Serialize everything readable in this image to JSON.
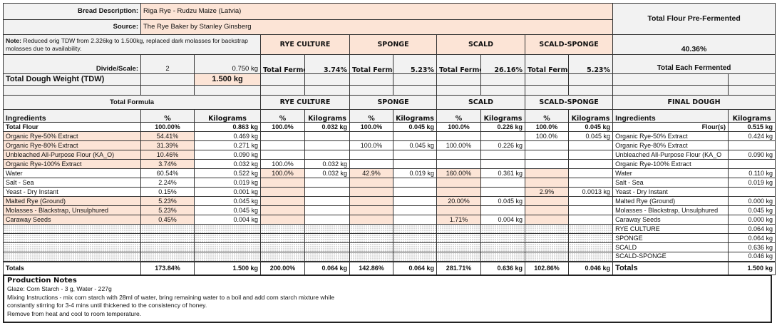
{
  "header": {
    "bread_description_label": "Bread Description:",
    "bread_description": "Riga Rye - Rudzu Maize (Latvia)",
    "source_label": "Source:",
    "source": "The Rye Baker by Stanley Ginsberg",
    "note_label": "Note:",
    "note_text": " Reduced orig TDW from 2.326kg to 1.500kg, replaced dark molasses for backstrap molasses due to availability.",
    "divide_scale_label": "Divide/Scale:",
    "divide_value": "2",
    "divide_kg": "0.750 kg",
    "tdw_label": "Total Dough Weight (TDW)",
    "tdw_value": "1.500 kg",
    "total_flour_prefermented_label": "Total Flour Pre-Fermented",
    "total_flour_prefermented_value": "40.36%",
    "total_each_fermented_label": "Total Each Fermented"
  },
  "preferments": [
    {
      "name": "RYE CULTURE",
      "total_fermented_label": "Total Fermented",
      "total_fermented_pct": "3.74%"
    },
    {
      "name": "SPONGE",
      "total_fermented_label": "Total Fermented",
      "total_fermented_pct": "5.23%"
    },
    {
      "name": "SCALD",
      "total_fermented_label": "Total Fermented",
      "total_fermented_pct": "26.16%"
    },
    {
      "name": "SCALD-SPONGE",
      "total_fermented_label": "Total Fermented",
      "total_fermented_pct": "5.23%"
    }
  ],
  "formula": {
    "title": "Total Formula",
    "final_dough_title": "FINAL DOUGH",
    "col_ingredients": "Ingredients",
    "col_pct": "%",
    "col_kg": "Kilograms",
    "rows": [
      [
        "Total Flour",
        "100.00%",
        "0.863 kg",
        "100.0%",
        "0.032 kg",
        "100.0%",
        "0.045 kg",
        "100.0%",
        "0.226 kg",
        "100.0%",
        "0.045 kg",
        "Flour(s)",
        "0.515 kg"
      ],
      [
        "Organic Rye-50% Extract",
        "54.41%",
        "0.469 kg",
        "",
        "",
        "",
        "",
        "",
        "",
        "100.0%",
        "0.045 kg",
        "Organic Rye-50% Extract",
        "0.424 kg"
      ],
      [
        "Organic Rye-80% Extract",
        "31.39%",
        "0.271 kg",
        "",
        "",
        "100.0%",
        "0.045 kg",
        "100.00%",
        "0.226 kg",
        "",
        "",
        "Organic Rye-80% Extract",
        ""
      ],
      [
        "Unbleached All-Purpose Flour  (KA_O)",
        "10.46%",
        "0.090 kg",
        "",
        "",
        "",
        "",
        "",
        "",
        "",
        "",
        "Unbleached All-Purpose Flour  (KA_O",
        "0.090 kg"
      ],
      [
        "Organic Rye-100% Extract",
        "3.74%",
        "0.032 kg",
        "100.0%",
        "0.032 kg",
        "",
        "",
        "",
        "",
        "",
        "",
        "Organic Rye-100% Extract",
        ""
      ],
      [
        "Water",
        "60.54%",
        "0.522 kg",
        "100.0%",
        "0.032 kg",
        "42.9%",
        "0.019 kg",
        "160.00%",
        "0.361 kg",
        "",
        "",
        "Water",
        "0.110 kg"
      ],
      [
        "Salt - Sea",
        "2.24%",
        "0.019 kg",
        "",
        "",
        "",
        "",
        "",
        "",
        "",
        "",
        "Salt - Sea",
        "0.019 kg"
      ],
      [
        "Yeast - Dry Instant",
        "0.15%",
        "0.001 kg",
        "",
        "",
        "",
        "",
        "",
        "",
        "2.9%",
        "0.0013 kg",
        "Yeast - Dry Instant",
        ""
      ],
      [
        "Malted Rye (Ground)",
        "5.23%",
        "0.045 kg",
        "",
        "",
        "",
        "",
        "20.00%",
        "0.045 kg",
        "",
        "",
        "Malted Rye (Ground)",
        "0.000 kg"
      ],
      [
        "Molasses - Blackstrap, Unsulphured",
        "5.23%",
        "0.045 kg",
        "",
        "",
        "",
        "",
        "",
        "",
        "",
        "",
        "Molasses - Blackstrap, Unsulphured",
        "0.045 kg"
      ],
      [
        "Caraway Seeds",
        "0.45%",
        "0.004 kg",
        "",
        "",
        "",
        "",
        "1.71%",
        "0.004 kg",
        "",
        "",
        "Caraway Seeds",
        "0.000 kg"
      ]
    ],
    "final_dough_preferments": [
      [
        "RYE CULTURE",
        "0.064 kg"
      ],
      [
        "SPONGE",
        "0.064 kg"
      ],
      [
        "SCALD",
        "0.636 kg"
      ],
      [
        "SCALD-SPONGE",
        "0.046 kg"
      ]
    ],
    "totals": [
      "Totals",
      "173.84%",
      "1.500 kg",
      "200.00%",
      "0.064 kg",
      "142.86%",
      "0.064 kg",
      "281.71%",
      "0.636 kg",
      "102.86%",
      "0.046 kg",
      "Totals",
      "1.500 kg"
    ]
  },
  "production_notes": {
    "title": "Production Notes",
    "lines": [
      "Glaze: Corn Starch - 3 g, Water - 227g",
      "Mixing Instructions - mix corn starch with 28ml of water, bring remaining water to a boil and add corn starch mixture while",
      "constantly stirring for 3-4 mins until thickened to the consistency of honey.",
      "Remove from heat and cool to room temperature."
    ]
  },
  "colors": {
    "input_fill": "#fce4d6",
    "header_fill": "#f2f2f2",
    "border": "#333333"
  }
}
